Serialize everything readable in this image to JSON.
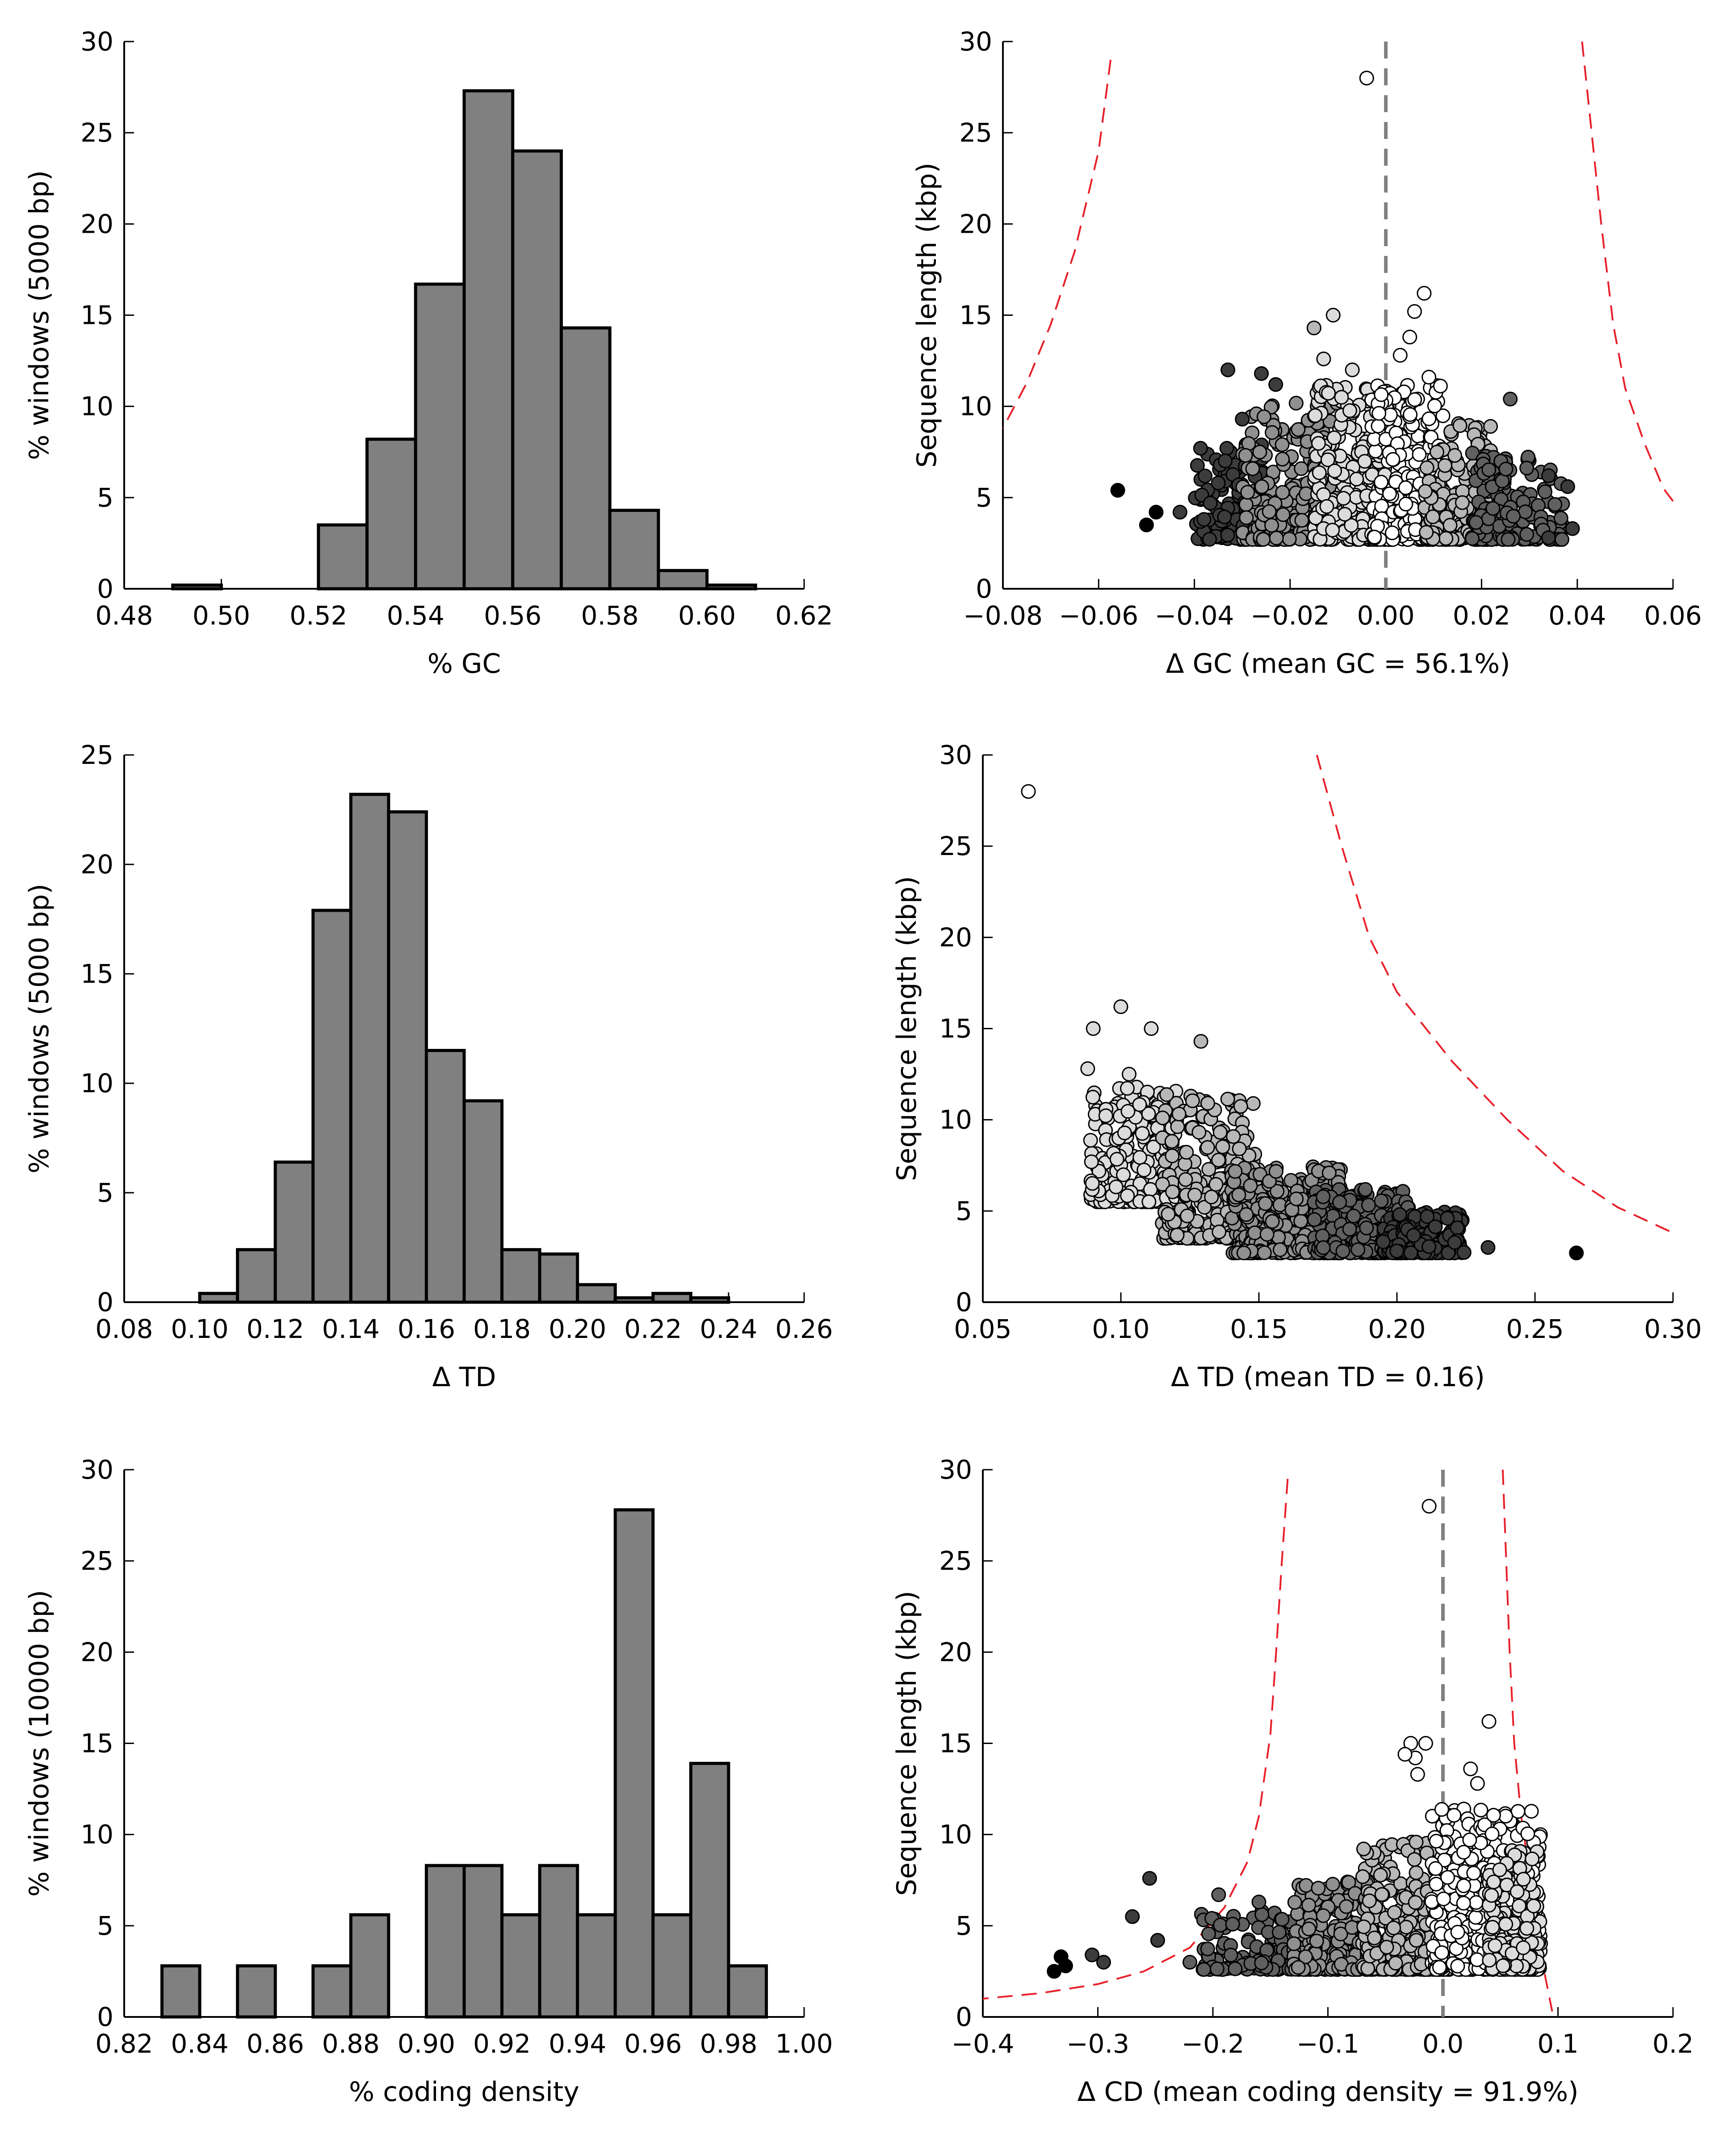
{
  "colors": {
    "bar_fill": "#808080",
    "bar_stroke": "#000000",
    "reference_line": "#808080",
    "bound_line": "#e8202a",
    "point_stroke": "#000000",
    "point_shades": [
      "#000000",
      "#3c3c3c",
      "#606060",
      "#909090",
      "#b8b8b8",
      "#dcdcdc",
      "#ffffff"
    ]
  },
  "chart_data": [
    {
      "id": "gc-histogram",
      "type": "bar",
      "xlabel": "% GC",
      "ylabel": "% windows (5000 bp)",
      "xlim": [
        0.48,
        0.62
      ],
      "ylim": [
        0,
        30
      ],
      "xticks": [
        0.48,
        0.5,
        0.52,
        0.54,
        0.56,
        0.58,
        0.6,
        0.62
      ],
      "xtick_labels": [
        "0.48",
        "0.50",
        "0.52",
        "0.54",
        "0.56",
        "0.58",
        "0.60",
        "0.62"
      ],
      "yticks": [
        0,
        5,
        10,
        15,
        20,
        25,
        30
      ],
      "ytick_labels": [
        "0",
        "5",
        "10",
        "15",
        "20",
        "25",
        "30"
      ],
      "bins": [
        {
          "start": 0.49,
          "end": 0.5,
          "value": 0.2
        },
        {
          "start": 0.52,
          "end": 0.53,
          "value": 3.5
        },
        {
          "start": 0.53,
          "end": 0.54,
          "value": 8.2
        },
        {
          "start": 0.54,
          "end": 0.55,
          "value": 16.7
        },
        {
          "start": 0.55,
          "end": 0.56,
          "value": 27.3
        },
        {
          "start": 0.56,
          "end": 0.57,
          "value": 24.0
        },
        {
          "start": 0.57,
          "end": 0.58,
          "value": 14.3
        },
        {
          "start": 0.58,
          "end": 0.59,
          "value": 4.3
        },
        {
          "start": 0.59,
          "end": 0.6,
          "value": 1.0
        },
        {
          "start": 0.6,
          "end": 0.61,
          "value": 0.2
        }
      ]
    },
    {
      "id": "gc-scatter",
      "type": "scatter",
      "xlabel": "Δ GC (mean GC = 56.1%)",
      "ylabel": "Sequence length (kbp)",
      "xlim": [
        -0.08,
        0.06
      ],
      "ylim": [
        0,
        30
      ],
      "xticks": [
        -0.08,
        -0.06,
        -0.04,
        -0.02,
        0.0,
        0.02,
        0.04,
        0.06
      ],
      "xtick_labels": [
        "−0.08",
        "−0.06",
        "−0.04",
        "−0.02",
        "0.00",
        "0.02",
        "0.04",
        "0.06"
      ],
      "yticks": [
        0,
        5,
        10,
        15,
        20,
        25,
        30
      ],
      "ytick_labels": [
        "0",
        "5",
        "10",
        "15",
        "20",
        "25",
        "30"
      ],
      "reference_x": 0.0,
      "bounds": [
        [
          [
            -0.0575,
            29.0
          ],
          [
            -0.06,
            24.0
          ],
          [
            -0.065,
            18.5
          ],
          [
            -0.07,
            14.5
          ],
          [
            -0.075,
            11.3
          ],
          [
            -0.08,
            8.8
          ]
        ],
        [
          [
            0.041,
            30.0
          ],
          [
            0.043,
            25.0
          ],
          [
            0.045,
            20.0
          ],
          [
            0.0475,
            14.5
          ],
          [
            0.05,
            11.0
          ],
          [
            0.054,
            8.0
          ],
          [
            0.058,
            5.5
          ],
          [
            0.06,
            4.8
          ]
        ]
      ],
      "points": [
        {
          "x": -0.004,
          "y": 28.0,
          "shade": 6
        },
        {
          "x": -0.056,
          "y": 5.4,
          "shade": 0
        },
        {
          "x": -0.048,
          "y": 4.2,
          "shade": 0
        },
        {
          "x": -0.05,
          "y": 3.5,
          "shade": 0
        },
        {
          "x": -0.033,
          "y": 12.0,
          "shade": 1
        },
        {
          "x": -0.026,
          "y": 11.8,
          "shade": 1
        },
        {
          "x": -0.023,
          "y": 11.2,
          "shade": 1
        },
        {
          "x": -0.03,
          "y": 9.3,
          "shade": 1
        },
        {
          "x": -0.035,
          "y": 5.8,
          "shade": 1
        },
        {
          "x": -0.038,
          "y": 3.8,
          "shade": 1
        },
        {
          "x": -0.043,
          "y": 4.2,
          "shade": 1
        },
        {
          "x": -0.011,
          "y": 15.0,
          "shade": 5
        },
        {
          "x": -0.015,
          "y": 14.3,
          "shade": 4
        },
        {
          "x": -0.013,
          "y": 12.6,
          "shade": 5
        },
        {
          "x": -0.007,
          "y": 12.0,
          "shade": 5
        },
        {
          "x": 0.008,
          "y": 16.2,
          "shade": 6
        },
        {
          "x": 0.006,
          "y": 15.2,
          "shade": 6
        },
        {
          "x": 0.005,
          "y": 13.8,
          "shade": 6
        },
        {
          "x": 0.003,
          "y": 12.8,
          "shade": 6
        },
        {
          "x": 0.009,
          "y": 11.6,
          "shade": 6
        },
        {
          "x": 0.026,
          "y": 10.4,
          "shade": 2
        },
        {
          "x": 0.034,
          "y": 6.2,
          "shade": 1
        },
        {
          "x": 0.038,
          "y": 5.6,
          "shade": 1
        },
        {
          "x": 0.039,
          "y": 3.3,
          "shade": 1
        },
        {
          "x": 0.034,
          "y": 2.8,
          "shade": 1
        }
      ],
      "cloud": [
        {
          "x": [
            -0.04,
            -0.025
          ],
          "y": [
            2.7,
            8.2
          ],
          "shade": 1,
          "count": 120
        },
        {
          "x": [
            -0.03,
            -0.01
          ],
          "y": [
            2.7,
            10.2
          ],
          "shade": 3,
          "count": 230
        },
        {
          "x": [
            -0.015,
            0.0
          ],
          "y": [
            2.7,
            11.5
          ],
          "shade": 5,
          "count": 260
        },
        {
          "x": [
            -0.003,
            0.012
          ],
          "y": [
            2.7,
            11.2
          ],
          "shade": 6,
          "count": 260
        },
        {
          "x": [
            0.008,
            0.022
          ],
          "y": [
            2.7,
            9.2
          ],
          "shade": 4,
          "count": 200
        },
        {
          "x": [
            0.018,
            0.037
          ],
          "y": [
            2.7,
            7.5
          ],
          "shade": 2,
          "count": 170
        }
      ]
    },
    {
      "id": "td-histogram",
      "type": "bar",
      "xlabel": "Δ TD",
      "ylabel": "% windows (5000 bp)",
      "xlim": [
        0.08,
        0.26
      ],
      "ylim": [
        0,
        25
      ],
      "xticks": [
        0.08,
        0.1,
        0.12,
        0.14,
        0.16,
        0.18,
        0.2,
        0.22,
        0.24,
        0.26
      ],
      "xtick_labels": [
        "0.08",
        "0.10",
        "0.12",
        "0.14",
        "0.16",
        "0.18",
        "0.20",
        "0.22",
        "0.24",
        "0.26"
      ],
      "yticks": [
        0,
        5,
        10,
        15,
        20,
        25
      ],
      "ytick_labels": [
        "0",
        "5",
        "10",
        "15",
        "20",
        "25"
      ],
      "bins": [
        {
          "start": 0.1,
          "end": 0.11,
          "value": 0.4
        },
        {
          "start": 0.11,
          "end": 0.12,
          "value": 2.4
        },
        {
          "start": 0.12,
          "end": 0.13,
          "value": 6.4
        },
        {
          "start": 0.13,
          "end": 0.14,
          "value": 17.9
        },
        {
          "start": 0.14,
          "end": 0.15,
          "value": 23.2
        },
        {
          "start": 0.15,
          "end": 0.16,
          "value": 22.4
        },
        {
          "start": 0.16,
          "end": 0.17,
          "value": 11.5
        },
        {
          "start": 0.17,
          "end": 0.18,
          "value": 9.2
        },
        {
          "start": 0.18,
          "end": 0.19,
          "value": 2.4
        },
        {
          "start": 0.19,
          "end": 0.2,
          "value": 2.2
        },
        {
          "start": 0.2,
          "end": 0.21,
          "value": 0.8
        },
        {
          "start": 0.21,
          "end": 0.22,
          "value": 0.2
        },
        {
          "start": 0.22,
          "end": 0.23,
          "value": 0.4
        },
        {
          "start": 0.23,
          "end": 0.24,
          "value": 0.2
        }
      ]
    },
    {
      "id": "td-scatter",
      "type": "scatter",
      "xlabel": "Δ TD (mean TD = 0.16)",
      "ylabel": "Sequence length (kbp)",
      "xlim": [
        0.05,
        0.3
      ],
      "ylim": [
        0,
        30
      ],
      "xticks": [
        0.05,
        0.1,
        0.15,
        0.2,
        0.25,
        0.3
      ],
      "xtick_labels": [
        "0.05",
        "0.10",
        "0.15",
        "0.20",
        "0.25",
        "0.30"
      ],
      "yticks": [
        0,
        5,
        10,
        15,
        20,
        25,
        30
      ],
      "ytick_labels": [
        "0",
        "5",
        "10",
        "15",
        "20",
        "25",
        "30"
      ],
      "reference_x": null,
      "bounds": [
        [
          [
            0.171,
            30.0
          ],
          [
            0.18,
            25.0
          ],
          [
            0.19,
            20.0
          ],
          [
            0.2,
            17.0
          ],
          [
            0.22,
            13.2
          ],
          [
            0.24,
            10.0
          ],
          [
            0.26,
            7.2
          ],
          [
            0.28,
            5.2
          ],
          [
            0.3,
            3.8
          ]
        ]
      ],
      "points": [
        {
          "x": 0.0665,
          "y": 28.0,
          "shade": 6
        },
        {
          "x": 0.265,
          "y": 2.7,
          "shade": 0
        },
        {
          "x": 0.1,
          "y": 16.2,
          "shade": 5
        },
        {
          "x": 0.09,
          "y": 15.0,
          "shade": 5
        },
        {
          "x": 0.111,
          "y": 15.0,
          "shade": 5
        },
        {
          "x": 0.129,
          "y": 14.3,
          "shade": 4
        },
        {
          "x": 0.103,
          "y": 12.5,
          "shade": 5
        },
        {
          "x": 0.088,
          "y": 12.8,
          "shade": 5
        },
        {
          "x": 0.233,
          "y": 3.0,
          "shade": 1
        }
      ],
      "cloud": [
        {
          "x": [
            0.089,
            0.12
          ],
          "y": [
            5.5,
            11.8
          ],
          "shade": 5,
          "count": 220
        },
        {
          "x": [
            0.115,
            0.15
          ],
          "y": [
            3.5,
            11.5
          ],
          "shade": 4,
          "count": 300
        },
        {
          "x": [
            0.14,
            0.18
          ],
          "y": [
            2.7,
            7.5
          ],
          "shade": 3,
          "count": 380
        },
        {
          "x": [
            0.17,
            0.205
          ],
          "y": [
            2.7,
            6.2
          ],
          "shade": 2,
          "count": 320
        },
        {
          "x": [
            0.195,
            0.225
          ],
          "y": [
            2.7,
            5.0
          ],
          "shade": 1,
          "count": 200
        }
      ]
    },
    {
      "id": "cd-histogram",
      "type": "bar",
      "xlabel": "% coding density",
      "ylabel": "% windows (10000 bp)",
      "xlim": [
        0.82,
        1.0
      ],
      "ylim": [
        0,
        30
      ],
      "xticks": [
        0.82,
        0.84,
        0.86,
        0.88,
        0.9,
        0.92,
        0.94,
        0.96,
        0.98,
        1.0
      ],
      "xtick_labels": [
        "0.82",
        "0.84",
        "0.86",
        "0.88",
        "0.90",
        "0.92",
        "0.94",
        "0.96",
        "0.98",
        "1.00"
      ],
      "yticks": [
        0,
        5,
        10,
        15,
        20,
        25,
        30
      ],
      "ytick_labels": [
        "0",
        "5",
        "10",
        "15",
        "20",
        "25",
        "30"
      ],
      "bins": [
        {
          "start": 0.83,
          "end": 0.84,
          "value": 2.8
        },
        {
          "start": 0.85,
          "end": 0.86,
          "value": 2.8
        },
        {
          "start": 0.87,
          "end": 0.88,
          "value": 2.8
        },
        {
          "start": 0.88,
          "end": 0.89,
          "value": 5.6
        },
        {
          "start": 0.9,
          "end": 0.91,
          "value": 8.3
        },
        {
          "start": 0.91,
          "end": 0.92,
          "value": 8.3
        },
        {
          "start": 0.92,
          "end": 0.93,
          "value": 5.6
        },
        {
          "start": 0.93,
          "end": 0.94,
          "value": 8.3
        },
        {
          "start": 0.94,
          "end": 0.95,
          "value": 5.6
        },
        {
          "start": 0.95,
          "end": 0.96,
          "value": 27.8
        },
        {
          "start": 0.96,
          "end": 0.97,
          "value": 5.6
        },
        {
          "start": 0.97,
          "end": 0.98,
          "value": 13.9
        },
        {
          "start": 0.98,
          "end": 0.99,
          "value": 2.8
        }
      ]
    },
    {
      "id": "cd-scatter",
      "type": "scatter",
      "xlabel": "Δ CD (mean coding density = 91.9%)",
      "ylabel": "Sequence length (kbp)",
      "xlim": [
        -0.4,
        0.2
      ],
      "ylim": [
        0,
        30
      ],
      "xticks": [
        -0.4,
        -0.3,
        -0.2,
        -0.1,
        0.0,
        0.1,
        0.2
      ],
      "xtick_labels": [
        "−0.4",
        "−0.3",
        "−0.2",
        "−0.1",
        "0.0",
        "0.1",
        "0.2"
      ],
      "yticks": [
        0,
        5,
        10,
        15,
        20,
        25,
        30
      ],
      "ytick_labels": [
        "0",
        "5",
        "10",
        "15",
        "20",
        "25",
        "30"
      ],
      "reference_x": 0.0,
      "bounds": [
        [
          [
            -0.135,
            29.5
          ],
          [
            -0.14,
            25.0
          ],
          [
            -0.145,
            20.0
          ],
          [
            -0.15,
            15.5
          ],
          [
            -0.16,
            11.0
          ],
          [
            -0.17,
            8.5
          ],
          [
            -0.19,
            6.0
          ],
          [
            -0.22,
            3.8
          ],
          [
            -0.26,
            2.5
          ],
          [
            -0.3,
            1.8
          ],
          [
            -0.35,
            1.3
          ],
          [
            -0.4,
            1.0
          ]
        ],
        [
          [
            0.052,
            30.0
          ],
          [
            0.055,
            25.0
          ],
          [
            0.058,
            20.0
          ],
          [
            0.062,
            15.0
          ],
          [
            0.068,
            11.0
          ],
          [
            0.075,
            8.0
          ],
          [
            0.082,
            5.0
          ],
          [
            0.088,
            2.5
          ],
          [
            0.095,
            0.3
          ]
        ]
      ],
      "points": [
        {
          "x": -0.012,
          "y": 28.0,
          "shade": 6
        },
        {
          "x": 0.04,
          "y": 16.2,
          "shade": 6
        },
        {
          "x": -0.015,
          "y": 15.0,
          "shade": 6
        },
        {
          "x": -0.028,
          "y": 15.0,
          "shade": 6
        },
        {
          "x": -0.024,
          "y": 14.2,
          "shade": 6
        },
        {
          "x": -0.033,
          "y": 14.4,
          "shade": 6
        },
        {
          "x": 0.024,
          "y": 13.6,
          "shade": 6
        },
        {
          "x": -0.022,
          "y": 13.3,
          "shade": 6
        },
        {
          "x": 0.03,
          "y": 12.8,
          "shade": 6
        },
        {
          "x": -0.338,
          "y": 2.5,
          "shade": 0
        },
        {
          "x": -0.332,
          "y": 3.3,
          "shade": 0
        },
        {
          "x": -0.328,
          "y": 2.8,
          "shade": 0
        },
        {
          "x": -0.305,
          "y": 3.4,
          "shade": 1
        },
        {
          "x": -0.295,
          "y": 3.0,
          "shade": 1
        },
        {
          "x": -0.27,
          "y": 5.5,
          "shade": 1
        },
        {
          "x": -0.255,
          "y": 7.6,
          "shade": 1
        },
        {
          "x": -0.248,
          "y": 4.2,
          "shade": 1
        },
        {
          "x": -0.22,
          "y": 3.0,
          "shade": 2
        },
        {
          "x": -0.195,
          "y": 6.7,
          "shade": 2
        },
        {
          "x": -0.16,
          "y": 6.3,
          "shade": 2
        }
      ],
      "cloud": [
        {
          "x": [
            -0.21,
            -0.13
          ],
          "y": [
            2.6,
            5.8
          ],
          "shade": 2,
          "count": 110
        },
        {
          "x": [
            -0.13,
            -0.06
          ],
          "y": [
            2.6,
            7.4
          ],
          "shade": 3,
          "count": 260
        },
        {
          "x": [
            -0.07,
            -0.005
          ],
          "y": [
            2.6,
            9.6
          ],
          "shade": 4,
          "count": 320
        },
        {
          "x": [
            -0.01,
            0.085
          ],
          "y": [
            2.6,
            11.4
          ],
          "shade": 6,
          "count": 520
        },
        {
          "x": [
            0.04,
            0.085
          ],
          "y": [
            2.6,
            9.2
          ],
          "shade": 5,
          "count": 180
        }
      ]
    }
  ]
}
